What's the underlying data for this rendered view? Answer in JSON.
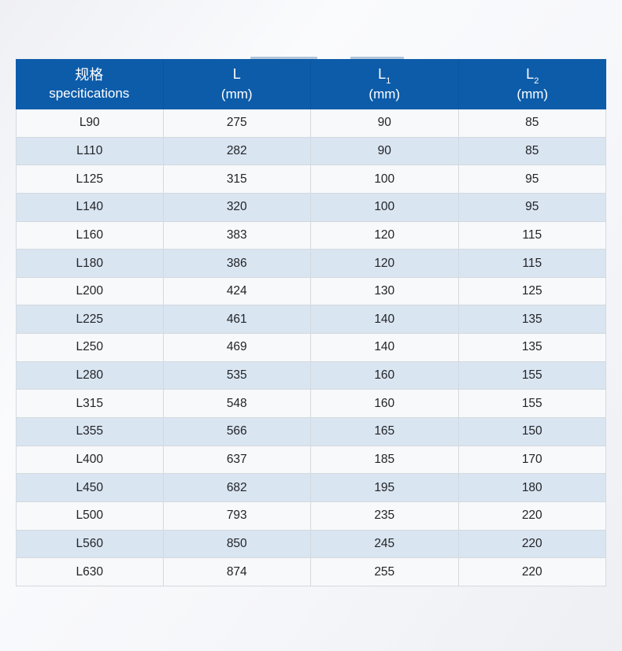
{
  "chart_data": {
    "type": "table",
    "title": "",
    "columns": [
      {
        "zh": "规格",
        "en": "specitications"
      },
      {
        "symbol": "L",
        "sub": "",
        "unit": "(mm)"
      },
      {
        "symbol": "L",
        "sub": "1",
        "unit": "(mm)"
      },
      {
        "symbol": "L",
        "sub": "2",
        "unit": "(mm)"
      }
    ],
    "rows": [
      [
        "L90",
        "275",
        "90",
        "85"
      ],
      [
        "L110",
        "282",
        "90",
        "85"
      ],
      [
        "L125",
        "315",
        "100",
        "95"
      ],
      [
        "L140",
        "320",
        "100",
        "95"
      ],
      [
        "L160",
        "383",
        "120",
        "115"
      ],
      [
        "L180",
        "386",
        "120",
        "115"
      ],
      [
        "L200",
        "424",
        "130",
        "125"
      ],
      [
        "L225",
        "461",
        "140",
        "135"
      ],
      [
        "L250",
        "469",
        "140",
        "135"
      ],
      [
        "L280",
        "535",
        "160",
        "155"
      ],
      [
        "L315",
        "548",
        "160",
        "155"
      ],
      [
        "L355",
        "566",
        "165",
        "150"
      ],
      [
        "L400",
        "637",
        "185",
        "170"
      ],
      [
        "L450",
        "682",
        "195",
        "180"
      ],
      [
        "L500",
        "793",
        "235",
        "220"
      ],
      [
        "L560",
        "850",
        "245",
        "220"
      ],
      [
        "L630",
        "874",
        "255",
        "220"
      ]
    ]
  },
  "colors": {
    "header_bg": "#0d5caa",
    "header_text": "#ffffff",
    "row_even_bg": "#f8f9fb",
    "row_odd_bg": "#d9e5f1",
    "cell_text": "#232427",
    "grid_line": "#d4d9df",
    "header_divider": "#0b549d",
    "bump_color": "#b3c6db"
  }
}
